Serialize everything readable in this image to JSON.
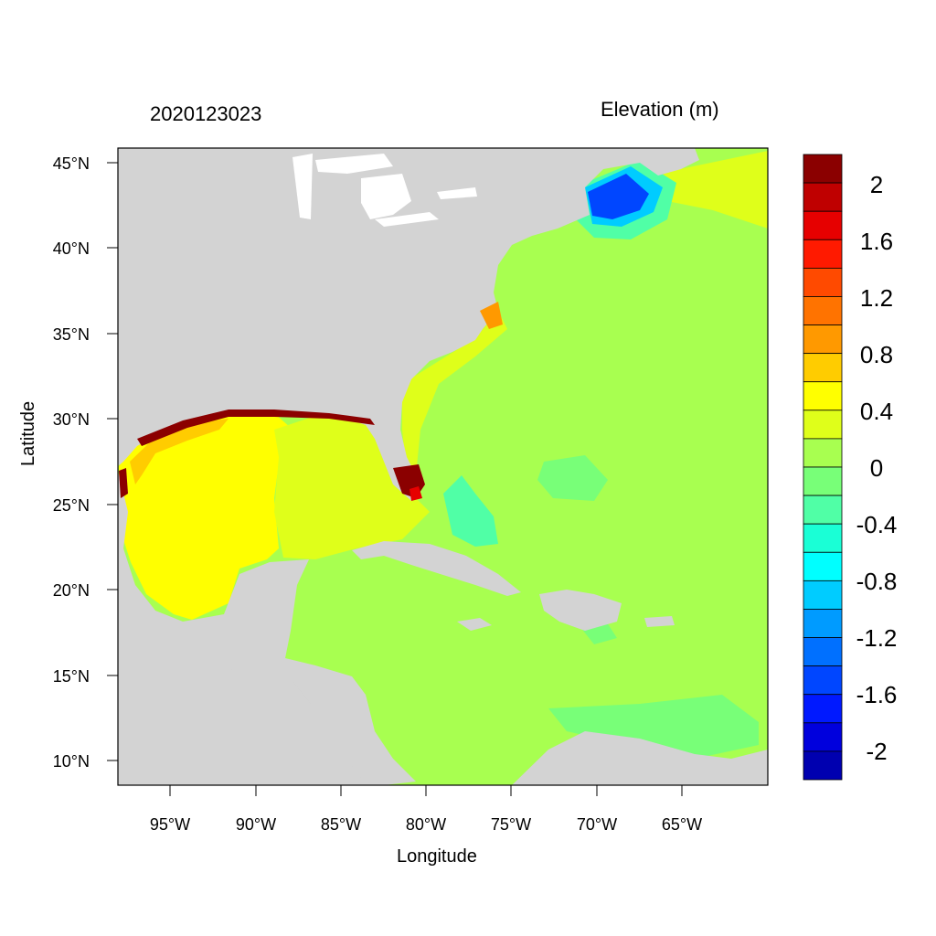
{
  "map": {
    "date": "2020123023",
    "variable": "Elevation (m)",
    "x_axis_title": "Longitude",
    "y_axis_title": "Latitude",
    "lon_ticks": [
      "95°W",
      "90°W",
      "85°W",
      "80°W",
      "75°W",
      "70°W",
      "65°W"
    ],
    "lat_ticks": [
      "45°N",
      "40°N",
      "35°N",
      "30°N",
      "25°N",
      "20°N",
      "15°N",
      "10°N"
    ],
    "colors": {
      "land": "#d3d3d3",
      "ocean_zero": "#a8ff50",
      "frame": "#000000"
    }
  },
  "colorbar": {
    "labels": [
      "2",
      "1.6",
      "1.2",
      "0.8",
      "0.4",
      "0",
      "-0.4",
      "-0.8",
      "-1.2",
      "-1.6",
      "-2"
    ],
    "colors": [
      "#8b0000",
      "#bf0000",
      "#e60000",
      "#ff1a00",
      "#ff4a00",
      "#ff7300",
      "#ff9900",
      "#ffcc00",
      "#ffff00",
      "#dfff1a",
      "#a8ff50",
      "#78ff78",
      "#50ffa6",
      "#1affd6",
      "#00ffff",
      "#00ccff",
      "#009bff",
      "#0070ff",
      "#0046ff",
      "#0019ff",
      "#0000dd",
      "#0000b0"
    ]
  }
}
